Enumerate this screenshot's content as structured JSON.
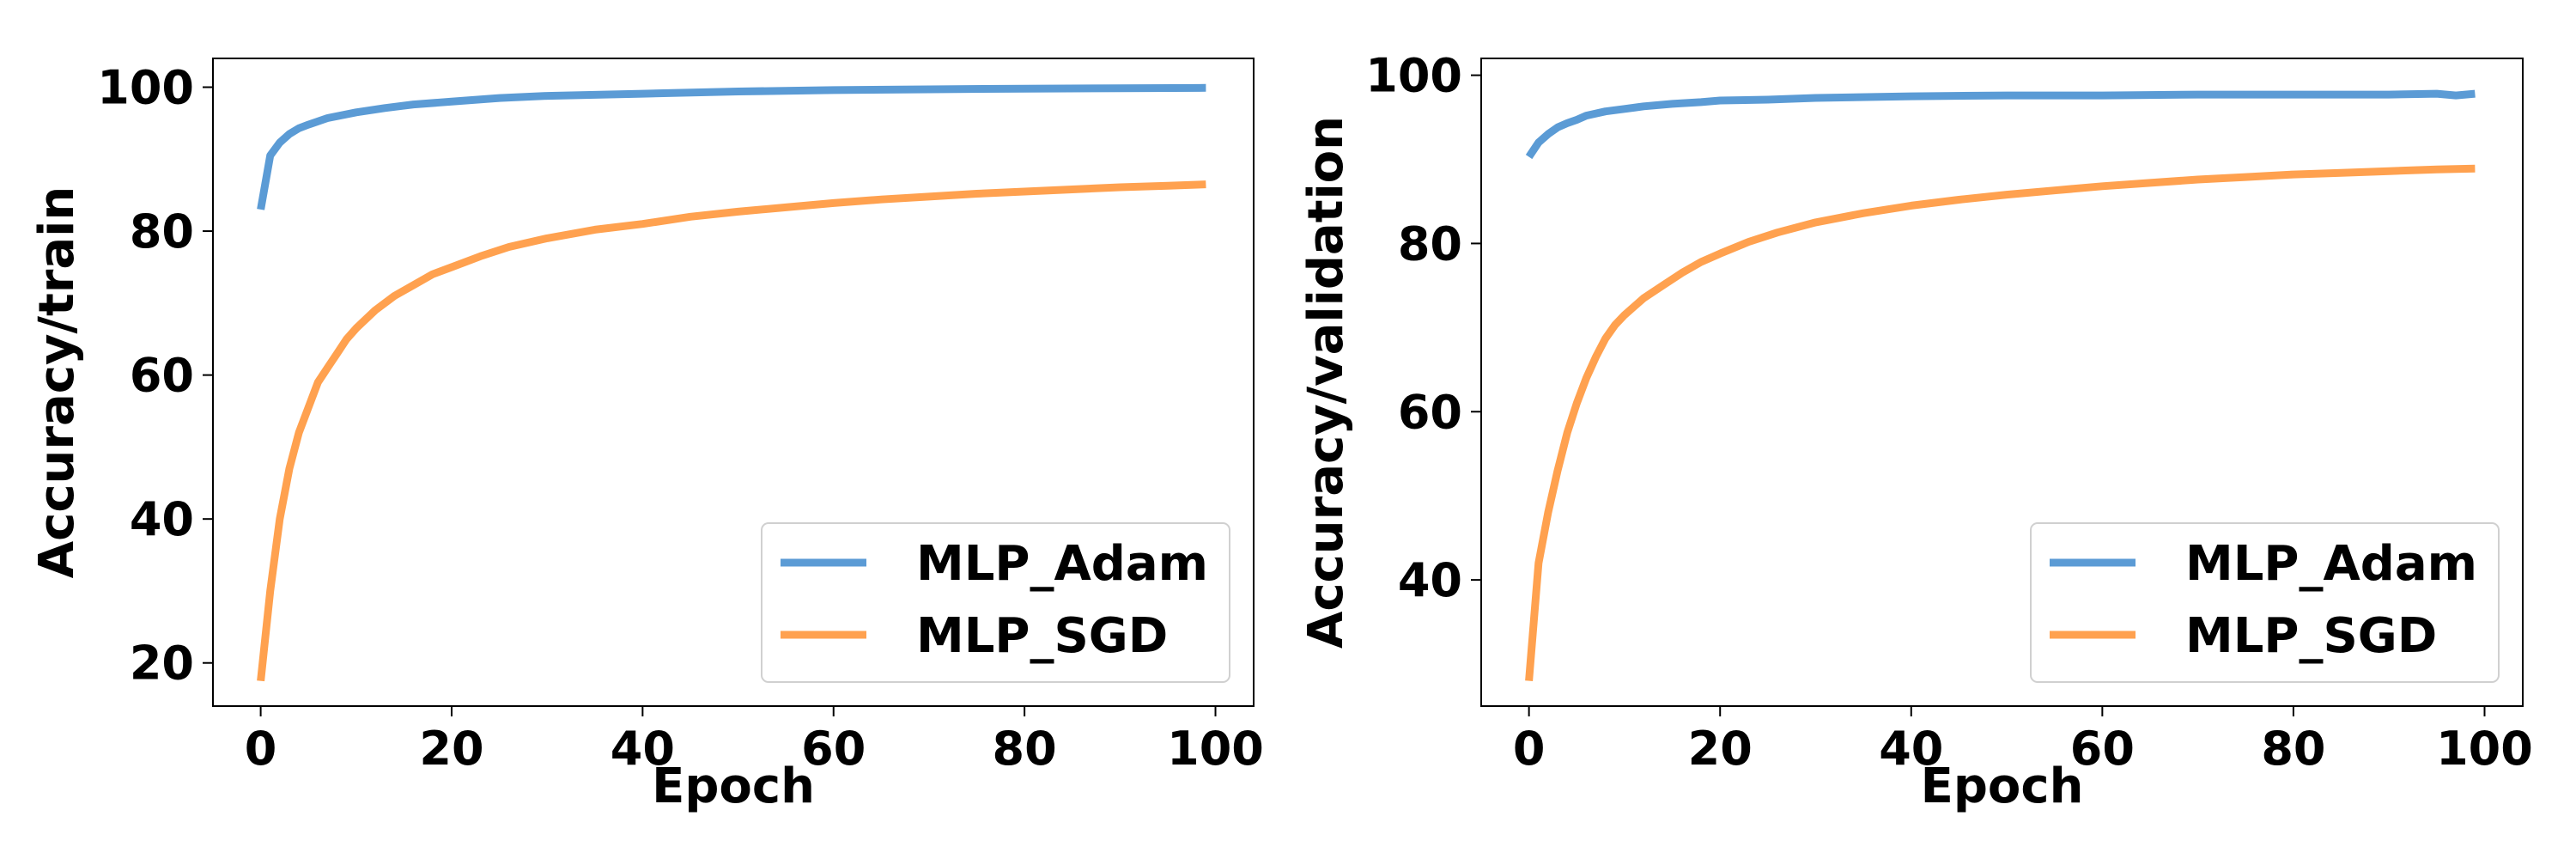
{
  "colors": {
    "adam": "#5b9bd5",
    "sgd": "#ffa14f",
    "axis": "#000000",
    "legend_border": "#d0d0d0"
  },
  "chart_data": [
    {
      "type": "line",
      "xlabel": "Epoch",
      "ylabel": "Accuracy/train",
      "xlim": [
        -5,
        104
      ],
      "ylim": [
        14,
        104
      ],
      "xticks": [
        0,
        20,
        40,
        60,
        80,
        100
      ],
      "yticks": [
        20,
        40,
        60,
        80,
        100
      ],
      "legend": "bottom-right",
      "grid": false,
      "series": [
        {
          "name": "MLP_Adam",
          "color": "#5b9bd5",
          "points": [
            [
              0,
              83
            ],
            [
              1,
              90.5
            ],
            [
              2,
              92.3
            ],
            [
              3,
              93.5
            ],
            [
              4,
              94.3
            ],
            [
              5,
              94.8
            ],
            [
              7,
              95.7
            ],
            [
              10,
              96.5
            ],
            [
              13,
              97.1
            ],
            [
              16,
              97.6
            ],
            [
              20,
              98.0
            ],
            [
              25,
              98.5
            ],
            [
              30,
              98.8
            ],
            [
              40,
              99.1
            ],
            [
              50,
              99.4
            ],
            [
              60,
              99.6
            ],
            [
              70,
              99.7
            ],
            [
              80,
              99.8
            ],
            [
              90,
              99.85
            ],
            [
              99,
              99.9
            ]
          ]
        },
        {
          "name": "MLP_SGD",
          "color": "#ffa14f",
          "points": [
            [
              0,
              17.5
            ],
            [
              1,
              30
            ],
            [
              2,
              40
            ],
            [
              3,
              47
            ],
            [
              4,
              52
            ],
            [
              5,
              55.5
            ],
            [
              6,
              59
            ],
            [
              7,
              61
            ],
            [
              8,
              63
            ],
            [
              9,
              65
            ],
            [
              10,
              66.5
            ],
            [
              12,
              69
            ],
            [
              14,
              71
            ],
            [
              16,
              72.5
            ],
            [
              18,
              74
            ],
            [
              20,
              75
            ],
            [
              23,
              76.5
            ],
            [
              26,
              77.8
            ],
            [
              30,
              79
            ],
            [
              35,
              80.2
            ],
            [
              40,
              81
            ],
            [
              45,
              82
            ],
            [
              50,
              82.7
            ],
            [
              55,
              83.3
            ],
            [
              60,
              83.9
            ],
            [
              65,
              84.4
            ],
            [
              70,
              84.8
            ],
            [
              75,
              85.2
            ],
            [
              80,
              85.5
            ],
            [
              85,
              85.8
            ],
            [
              90,
              86.1
            ],
            [
              95,
              86.3
            ],
            [
              99,
              86.5
            ]
          ]
        }
      ]
    },
    {
      "type": "line",
      "xlabel": "Epoch",
      "ylabel": "Accuracy/validation",
      "xlim": [
        -5,
        104
      ],
      "ylim": [
        25,
        102
      ],
      "xticks": [
        0,
        20,
        40,
        60,
        80,
        100
      ],
      "yticks": [
        40,
        60,
        80,
        100
      ],
      "legend": "bottom-right",
      "grid": false,
      "series": [
        {
          "name": "MLP_Adam",
          "color": "#5b9bd5",
          "points": [
            [
              0,
              90.3
            ],
            [
              1,
              92
            ],
            [
              2,
              93
            ],
            [
              3,
              93.8
            ],
            [
              4,
              94.3
            ],
            [
              5,
              94.7
            ],
            [
              6,
              95.2
            ],
            [
              8,
              95.7
            ],
            [
              10,
              96
            ],
            [
              12,
              96.3
            ],
            [
              15,
              96.6
            ],
            [
              18,
              96.8
            ],
            [
              20,
              97
            ],
            [
              25,
              97.1
            ],
            [
              30,
              97.3
            ],
            [
              40,
              97.5
            ],
            [
              50,
              97.6
            ],
            [
              60,
              97.6
            ],
            [
              70,
              97.7
            ],
            [
              80,
              97.7
            ],
            [
              90,
              97.7
            ],
            [
              95,
              97.8
            ],
            [
              97,
              97.6
            ],
            [
              99,
              97.8
            ]
          ]
        },
        {
          "name": "MLP_SGD",
          "color": "#ffa14f",
          "points": [
            [
              0,
              28
            ],
            [
              1,
              42
            ],
            [
              2,
              48
            ],
            [
              3,
              53
            ],
            [
              4,
              57.5
            ],
            [
              5,
              61
            ],
            [
              6,
              64
            ],
            [
              7,
              66.5
            ],
            [
              8,
              68.7
            ],
            [
              9,
              70.3
            ],
            [
              10,
              71.5
            ],
            [
              12,
              73.5
            ],
            [
              14,
              75
            ],
            [
              16,
              76.5
            ],
            [
              18,
              77.8
            ],
            [
              20,
              78.8
            ],
            [
              23,
              80.2
            ],
            [
              26,
              81.3
            ],
            [
              30,
              82.5
            ],
            [
              35,
              83.6
            ],
            [
              40,
              84.5
            ],
            [
              45,
              85.2
            ],
            [
              50,
              85.8
            ],
            [
              55,
              86.3
            ],
            [
              60,
              86.8
            ],
            [
              65,
              87.2
            ],
            [
              70,
              87.6
            ],
            [
              75,
              87.9
            ],
            [
              80,
              88.2
            ],
            [
              85,
              88.4
            ],
            [
              90,
              88.6
            ],
            [
              95,
              88.8
            ],
            [
              99,
              88.9
            ]
          ]
        }
      ]
    }
  ]
}
